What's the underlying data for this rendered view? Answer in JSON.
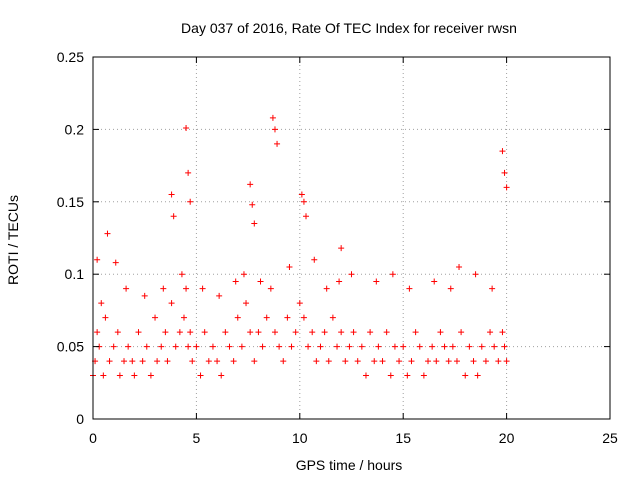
{
  "chart_data": {
    "type": "scatter",
    "title": "Day 037 of 2016, Rate Of TEC Index for receiver rwsn",
    "xlabel": "GPS time / hours",
    "ylabel": "ROTI / TECUs",
    "xlim": [
      0,
      25
    ],
    "ylim": [
      0,
      0.25
    ],
    "x_ticks": [
      "0",
      "5",
      "10",
      "15",
      "20",
      "25"
    ],
    "y_ticks": [
      "0",
      "0.05",
      "0.1",
      "0.15",
      "0.2",
      "0.25"
    ],
    "grid": true,
    "marker": "plus",
    "color": "#ff0000",
    "series": [
      {
        "x": [
          0.0,
          0.1,
          0.2,
          0.3,
          0.5,
          0.6,
          0.8,
          1.0,
          1.2,
          1.3,
          1.5,
          1.7,
          1.9,
          2.0,
          2.2,
          2.4,
          2.6,
          2.8,
          3.0,
          3.1,
          3.3,
          3.5,
          3.6,
          3.8,
          4.0,
          4.2,
          4.4,
          4.5,
          4.6,
          4.7,
          4.8,
          5.0,
          5.2,
          5.4,
          5.6,
          5.8,
          6.0,
          6.2,
          6.4,
          6.6,
          6.8,
          7.0,
          7.2,
          7.4,
          7.6,
          7.8,
          8.0,
          8.2,
          8.4,
          8.6,
          8.8,
          9.0,
          9.2,
          9.4,
          9.6,
          9.8,
          10.0,
          10.2,
          10.4,
          10.6,
          10.8,
          11.0,
          11.2,
          11.4,
          11.6,
          11.8,
          12.0,
          12.2,
          12.4,
          12.6,
          12.8,
          13.0,
          13.2,
          13.4,
          13.6,
          13.8,
          14.0,
          14.2,
          14.4,
          14.6,
          14.8,
          15.0,
          15.2,
          15.4,
          15.6,
          15.8,
          16.0,
          16.2,
          16.4,
          16.6,
          16.8,
          17.0,
          17.2,
          17.4,
          17.6,
          17.8,
          18.0,
          18.2,
          18.4,
          18.6,
          18.8,
          19.0,
          19.2,
          19.4,
          19.6,
          19.8,
          19.9,
          20.0,
          0.2,
          0.7,
          1.1,
          4.5,
          4.6,
          4.7,
          3.8,
          3.9,
          7.6,
          7.7,
          7.8,
          8.7,
          8.8,
          8.9,
          10.1,
          10.2,
          10.3,
          12.0,
          19.8,
          19.9,
          20.0,
          0.4,
          1.6,
          2.5,
          3.4,
          4.3,
          5.3,
          6.1,
          6.9,
          7.3,
          8.1,
          9.5,
          10.7,
          11.3,
          11.9,
          12.5,
          13.7,
          14.5,
          15.3,
          16.5,
          17.3,
          17.7,
          18.5,
          19.3
        ],
        "y": [
          0.03,
          0.04,
          0.06,
          0.05,
          0.03,
          0.07,
          0.04,
          0.05,
          0.06,
          0.03,
          0.04,
          0.05,
          0.04,
          0.03,
          0.06,
          0.04,
          0.05,
          0.03,
          0.07,
          0.04,
          0.05,
          0.06,
          0.04,
          0.08,
          0.05,
          0.06,
          0.07,
          0.09,
          0.05,
          0.06,
          0.04,
          0.05,
          0.03,
          0.06,
          0.04,
          0.05,
          0.04,
          0.03,
          0.06,
          0.05,
          0.04,
          0.07,
          0.05,
          0.08,
          0.06,
          0.04,
          0.06,
          0.05,
          0.07,
          0.09,
          0.06,
          0.05,
          0.04,
          0.07,
          0.05,
          0.06,
          0.08,
          0.07,
          0.05,
          0.06,
          0.04,
          0.05,
          0.06,
          0.04,
          0.07,
          0.05,
          0.06,
          0.04,
          0.05,
          0.06,
          0.04,
          0.05,
          0.03,
          0.06,
          0.04,
          0.05,
          0.04,
          0.06,
          0.03,
          0.05,
          0.04,
          0.05,
          0.03,
          0.04,
          0.06,
          0.05,
          0.03,
          0.04,
          0.05,
          0.04,
          0.06,
          0.05,
          0.04,
          0.05,
          0.04,
          0.06,
          0.03,
          0.05,
          0.04,
          0.03,
          0.05,
          0.04,
          0.06,
          0.05,
          0.04,
          0.06,
          0.05,
          0.04,
          0.11,
          0.128,
          0.108,
          0.201,
          0.17,
          0.15,
          0.155,
          0.14,
          0.162,
          0.148,
          0.135,
          0.208,
          0.2,
          0.19,
          0.155,
          0.15,
          0.14,
          0.118,
          0.185,
          0.17,
          0.16,
          0.08,
          0.09,
          0.085,
          0.09,
          0.1,
          0.09,
          0.085,
          0.095,
          0.1,
          0.095,
          0.105,
          0.11,
          0.09,
          0.095,
          0.1,
          0.095,
          0.1,
          0.09,
          0.095,
          0.09,
          0.105,
          0.1,
          0.09
        ]
      }
    ]
  }
}
